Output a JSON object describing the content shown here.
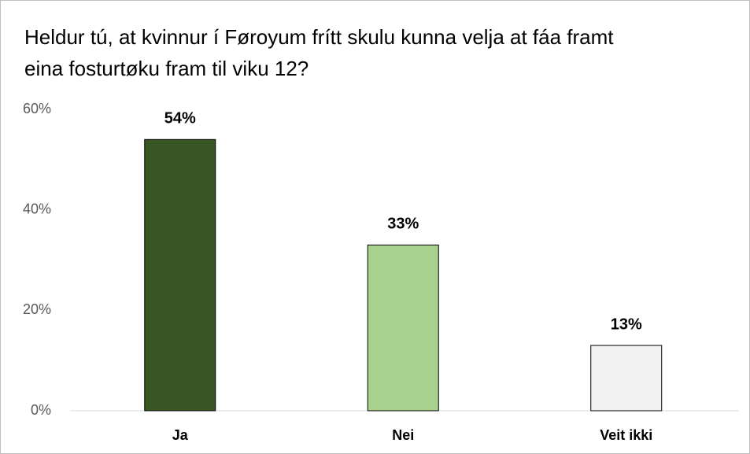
{
  "chart_data": {
    "type": "bar",
    "title": "Heldur tú, at kvinnur í Føroyum frítt skulu kunna velja at fáa framt eina fosturtøku fram til viku 12?",
    "categories": [
      "Ja",
      "Nei",
      "Veit ikki"
    ],
    "values": [
      54,
      33,
      13
    ],
    "value_labels": [
      "54%",
      "33%",
      "13%"
    ],
    "colors": [
      "#375623",
      "#a9d18e",
      "#f2f2f2"
    ],
    "ylim": [
      0,
      60
    ],
    "yticks": [
      {
        "value": 0,
        "label": "0%"
      },
      {
        "value": 20,
        "label": "20%"
      },
      {
        "value": 40,
        "label": "40%"
      },
      {
        "value": 60,
        "label": "60%"
      }
    ],
    "grid": false
  }
}
